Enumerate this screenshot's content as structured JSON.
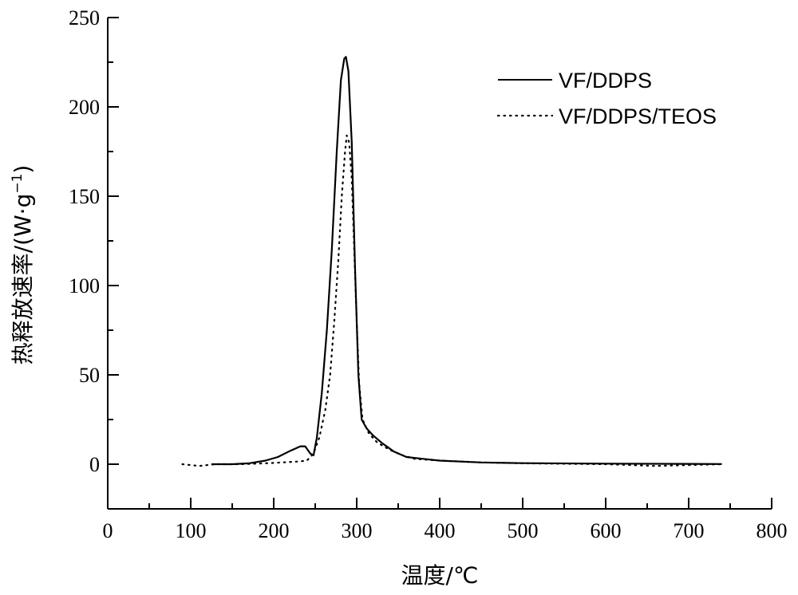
{
  "chart_data": {
    "type": "line",
    "xlabel": "温度/℃",
    "ylabel": "热释放速率/(W·g",
    "ylabel_sup": "−1",
    "ylabel_close": ")",
    "xlim": [
      0,
      800
    ],
    "ylim": [
      -25,
      250
    ],
    "xticks": [
      0,
      100,
      200,
      300,
      400,
      500,
      600,
      700,
      800
    ],
    "yticks": [
      0,
      50,
      100,
      150,
      200,
      250
    ],
    "grid": false,
    "legend_position": "top-right",
    "series": [
      {
        "name": "VF/DDPS",
        "style": "solid",
        "points": [
          [
            125,
            0
          ],
          [
            150,
            0
          ],
          [
            170,
            0.5
          ],
          [
            190,
            2
          ],
          [
            205,
            4
          ],
          [
            220,
            7.5
          ],
          [
            232,
            10
          ],
          [
            238,
            10
          ],
          [
            244,
            6
          ],
          [
            248,
            5
          ],
          [
            252,
            15
          ],
          [
            258,
            40
          ],
          [
            264,
            75
          ],
          [
            270,
            120
          ],
          [
            276,
            175
          ],
          [
            281,
            215
          ],
          [
            285,
            227
          ],
          [
            287,
            228
          ],
          [
            290,
            220
          ],
          [
            294,
            180
          ],
          [
            298,
            110
          ],
          [
            302,
            50
          ],
          [
            306,
            25
          ],
          [
            312,
            20
          ],
          [
            320,
            16
          ],
          [
            330,
            12
          ],
          [
            345,
            7
          ],
          [
            360,
            4
          ],
          [
            380,
            3
          ],
          [
            400,
            2
          ],
          [
            450,
            1
          ],
          [
            500,
            0.6
          ],
          [
            600,
            0.3
          ],
          [
            700,
            0.2
          ],
          [
            740,
            0.1
          ]
        ]
      },
      {
        "name": "VF/DDPS/TEOS",
        "style": "dotted",
        "points": [
          [
            90,
            0
          ],
          [
            110,
            -1
          ],
          [
            130,
            0
          ],
          [
            160,
            0
          ],
          [
            190,
            0.5
          ],
          [
            210,
            1
          ],
          [
            230,
            1.5
          ],
          [
            240,
            2
          ],
          [
            248,
            6
          ],
          [
            255,
            15
          ],
          [
            262,
            30
          ],
          [
            268,
            50
          ],
          [
            273,
            80
          ],
          [
            278,
            115
          ],
          [
            282,
            150
          ],
          [
            286,
            175
          ],
          [
            288,
            184
          ],
          [
            291,
            180
          ],
          [
            294,
            160
          ],
          [
            297,
            120
          ],
          [
            300,
            80
          ],
          [
            303,
            45
          ],
          [
            307,
            25
          ],
          [
            315,
            17
          ],
          [
            325,
            12
          ],
          [
            340,
            8
          ],
          [
            355,
            5
          ],
          [
            370,
            3
          ],
          [
            400,
            2
          ],
          [
            450,
            1
          ],
          [
            500,
            0.5
          ],
          [
            600,
            0
          ],
          [
            660,
            -1
          ],
          [
            700,
            -0.5
          ],
          [
            740,
            0
          ]
        ]
      }
    ]
  }
}
